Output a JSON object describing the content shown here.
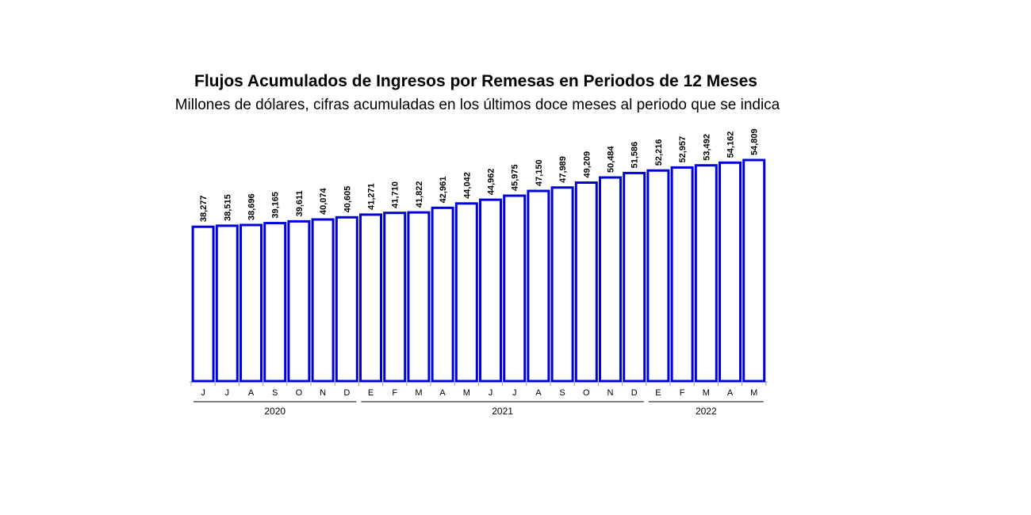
{
  "chart_data": {
    "type": "bar",
    "title": "Flujos Acumulados de Ingresos por Remesas en Periodos de 12 Meses",
    "subtitle": "Millones de dólares, cifras acumuladas en los últimos doce meses al periodo que se indica",
    "categories": [
      "J",
      "J",
      "A",
      "S",
      "O",
      "N",
      "D",
      "E",
      "F",
      "M",
      "A",
      "M",
      "J",
      "J",
      "A",
      "S",
      "O",
      "N",
      "D",
      "E",
      "F",
      "M",
      "A",
      "M"
    ],
    "values": [
      38277,
      38515,
      38696,
      39165,
      39611,
      40074,
      40605,
      41271,
      41710,
      41822,
      42961,
      44042,
      44962,
      45975,
      47150,
      47989,
      49209,
      50484,
      51586,
      52216,
      52957,
      53492,
      54162,
      54809
    ],
    "value_labels": [
      "38,277",
      "38,515",
      "38,696",
      "39,165",
      "39,611",
      "40,074",
      "40,605",
      "41,271",
      "41,710",
      "41,822",
      "42,961",
      "44,042",
      "44,962",
      "45,975",
      "47,150",
      "47,989",
      "49,209",
      "50,484",
      "51,586",
      "52,216",
      "52,957",
      "53,492",
      "54,162",
      "54,809"
    ],
    "groups": [
      {
        "label": "2020",
        "start": 0,
        "end": 6
      },
      {
        "label": "2021",
        "start": 7,
        "end": 18
      },
      {
        "label": "2022",
        "start": 19,
        "end": 23
      }
    ],
    "xlabel": "",
    "ylabel": "",
    "ylim": [
      0,
      54809
    ],
    "grid": false,
    "legend": "none",
    "colors": {
      "bar_fill": "#ffffff",
      "bar_stroke": "#0000dd",
      "baseline": "#a0a0a0"
    }
  }
}
